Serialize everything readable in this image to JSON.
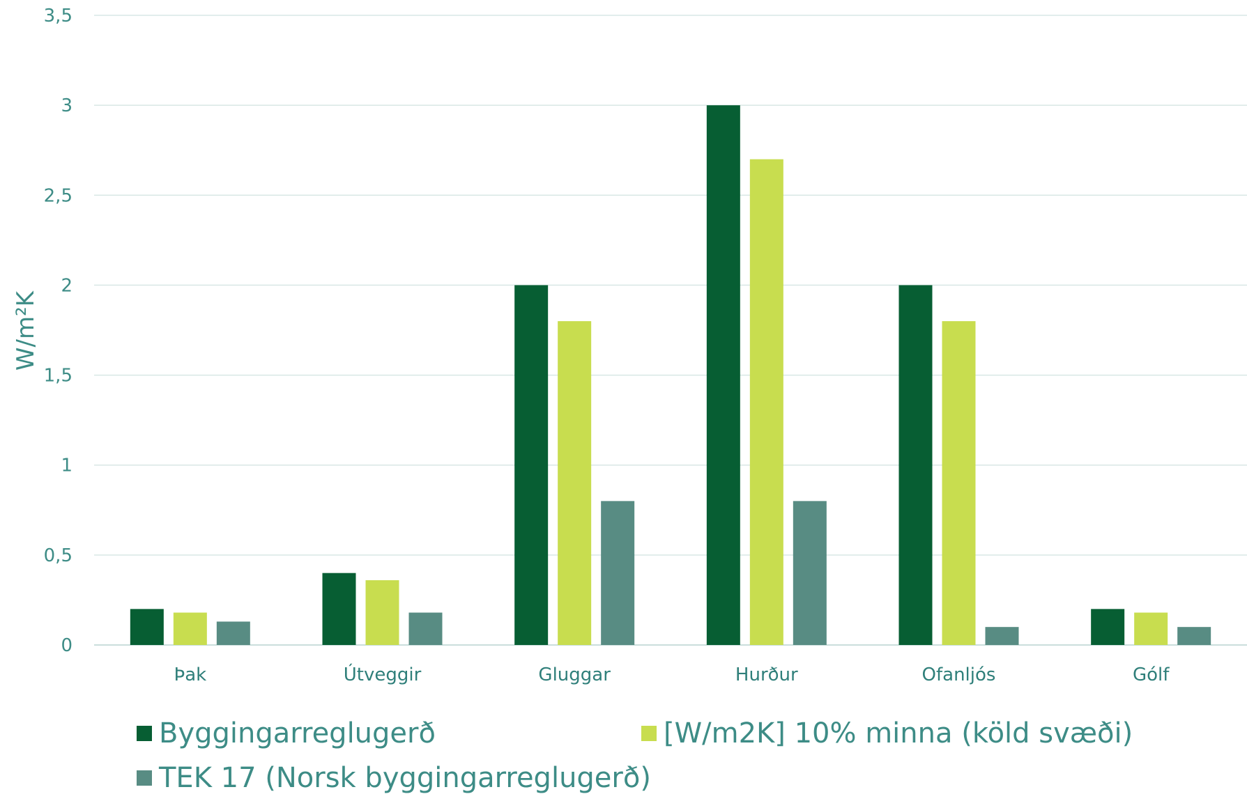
{
  "chart_data": {
    "type": "bar",
    "categories": [
      "Þak",
      "Útveggir",
      "Gluggar",
      "Hurður",
      "Ofanljós",
      "Gólf"
    ],
    "series": [
      {
        "name": "Byggingarreglugerð",
        "color": "#075e33",
        "values": [
          0.2,
          0.4,
          2.0,
          3.0,
          2.0,
          0.2
        ]
      },
      {
        "name": "[W/m2K] 10% minna (köld svæði)",
        "color": "#c8dd4f",
        "values": [
          0.18,
          0.36,
          1.8,
          2.7,
          1.8,
          0.18
        ]
      },
      {
        "name": "TEK 17 (Norsk byggingarreglugerð)",
        "color": "#588c83",
        "values": [
          0.13,
          0.18,
          0.8,
          0.8,
          0.1,
          0.1
        ]
      }
    ],
    "ylabel": "W/m²K",
    "ylim": [
      0,
      3.5
    ],
    "yticks": [
      "0",
      "0,5",
      "1",
      "1,5",
      "2",
      "2,5",
      "3",
      "3,5"
    ],
    "grid": true,
    "legend_position": "bottom"
  }
}
